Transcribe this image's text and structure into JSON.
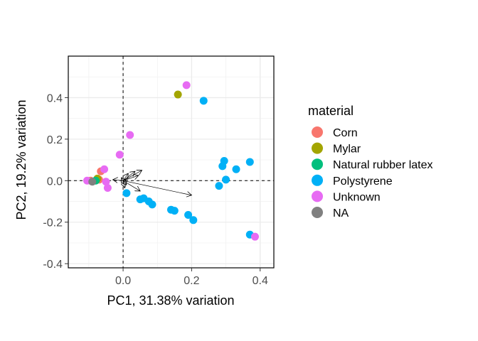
{
  "chart_data": {
    "type": "scatter",
    "title": "",
    "xlabel": "PC1, 31.38% variation",
    "ylabel": "PC2, 19.2% variation",
    "xlim": [
      -0.16,
      0.44
    ],
    "ylim": [
      -0.42,
      0.6
    ],
    "x_ticks": [
      0.0,
      0.2,
      0.4
    ],
    "x_tick_labels": [
      "0.0",
      "0.2",
      "0.4"
    ],
    "y_ticks": [
      -0.4,
      -0.2,
      0.0,
      0.2,
      0.4
    ],
    "y_tick_labels": [
      "-0.4",
      "-0.2",
      "0.0",
      "0.2",
      "0.4"
    ],
    "grid": true,
    "reference_lines": {
      "x": 0,
      "y": 0,
      "style": "dashed"
    },
    "legend": {
      "title": "material",
      "placement": "right",
      "entries": [
        {
          "label": "Corn",
          "color": "#F8766D"
        },
        {
          "label": "Mylar",
          "color": "#A3A500"
        },
        {
          "label": "Natural rubber latex",
          "color": "#00BF7D"
        },
        {
          "label": "Polystyrene",
          "color": "#00B0F6"
        },
        {
          "label": "Unknown",
          "color": "#E76BF3"
        },
        {
          "label": "NA",
          "color": "#808080"
        }
      ]
    },
    "series": [
      {
        "name": "Corn",
        "color": "#F8766D",
        "points": [
          [
            -0.065,
            0.045
          ],
          [
            -0.095,
            0.0
          ],
          [
            -0.07,
            0.005
          ]
        ]
      },
      {
        "name": "Mylar",
        "color": "#A3A500",
        "points": [
          [
            0.16,
            0.415
          ],
          [
            -0.075,
            0.01
          ]
        ]
      },
      {
        "name": "Natural rubber latex",
        "color": "#00BF7D",
        "points": [
          [
            -0.08,
            0.0
          ]
        ]
      },
      {
        "name": "Polystyrene",
        "color": "#00B0F6",
        "points": [
          [
            0.235,
            0.385
          ],
          [
            0.295,
            0.095
          ],
          [
            0.29,
            0.07
          ],
          [
            0.37,
            0.09
          ],
          [
            0.33,
            0.055
          ],
          [
            0.3,
            0.005
          ],
          [
            0.28,
            -0.025
          ],
          [
            0.37,
            -0.26
          ],
          [
            0.01,
            -0.06
          ],
          [
            0.05,
            -0.09
          ],
          [
            0.06,
            -0.085
          ],
          [
            0.075,
            -0.1
          ],
          [
            0.085,
            -0.115
          ],
          [
            0.14,
            -0.14
          ],
          [
            0.15,
            -0.145
          ],
          [
            0.19,
            -0.165
          ],
          [
            0.205,
            -0.19
          ]
        ]
      },
      {
        "name": "Unknown",
        "color": "#E76BF3",
        "points": [
          [
            0.185,
            0.46
          ],
          [
            0.02,
            0.22
          ],
          [
            -0.01,
            0.125
          ],
          [
            -0.055,
            0.055
          ],
          [
            -0.045,
            -0.035
          ],
          [
            -0.05,
            -0.005
          ],
          [
            -0.105,
            0.0
          ],
          [
            0.385,
            -0.27
          ]
        ]
      },
      {
        "name": "NA",
        "color": "#808080",
        "points": [
          [
            -0.09,
            -0.005
          ]
        ]
      }
    ],
    "loading_vectors": [
      [
        0.2,
        -0.07
      ],
      [
        0.05,
        -0.05
      ],
      [
        0.055,
        0.05
      ],
      [
        0.035,
        0.045
      ],
      [
        0.045,
        0.025
      ],
      [
        0.005,
        -0.035
      ],
      [
        -0.03,
        0.005
      ],
      [
        -0.005,
        0.015
      ],
      [
        0.01,
        -0.02
      ],
      [
        0.015,
        0.035
      ]
    ]
  }
}
